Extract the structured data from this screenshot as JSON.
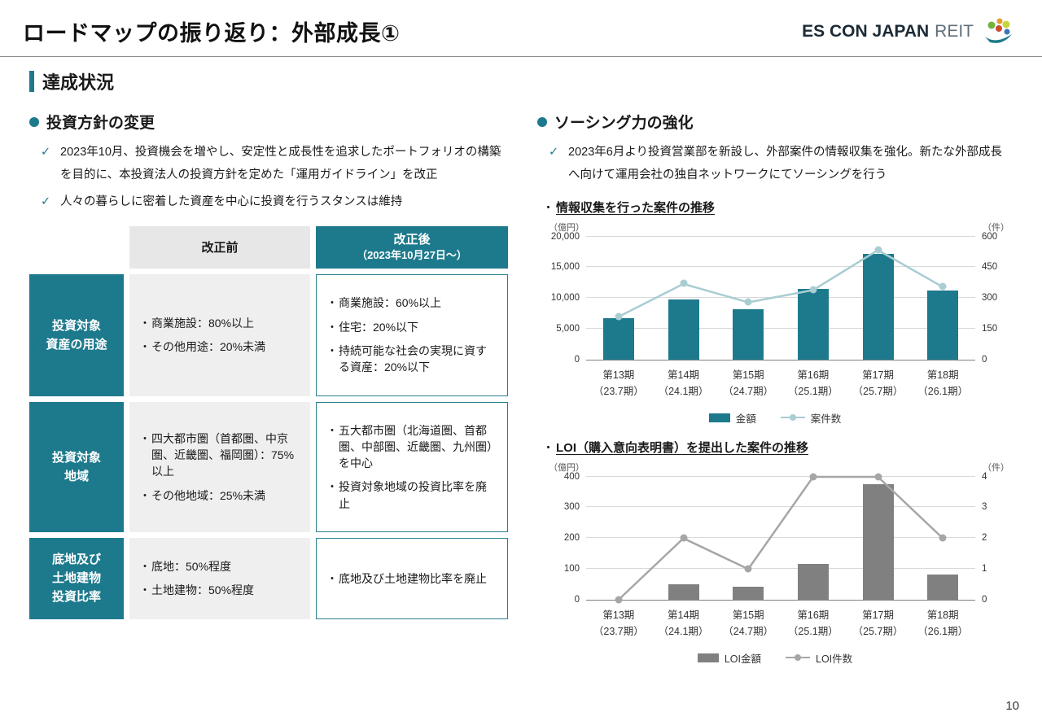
{
  "page": {
    "title": "ロードマップの振り返り：外部成長①",
    "page_number": "10",
    "logo": {
      "text_main": "ES CON JAPAN",
      "text_sub": "REIT"
    }
  },
  "section": {
    "heading": "達成状況"
  },
  "left": {
    "heading": "投資方針の変更",
    "bullets": [
      "2023年10月、投資機会を増やし、安定性と成長性を追求したポートフォリオの構築を目的に、本投資法人の投資方針を定めた「運用ガイドライン」を改正",
      "人々の暮らしに密着した資産を中心に投資を行うスタンスは維持"
    ],
    "table": {
      "col_before": "改正前",
      "col_after_line1": "改正後",
      "col_after_line2": "（2023年10月27日～）",
      "rows": [
        {
          "header": "投資対象\n資産の用途",
          "before": [
            "商業施設：80%以上",
            "その他用途：20%未満"
          ],
          "after": [
            "商業施設：60%以上",
            "住宅：20%以下",
            "持続可能な社会の実現に資する資産：20%以下"
          ]
        },
        {
          "header": "投資対象\n地域",
          "before": [
            "四大都市圏（首都圏、中京圏、近畿圏、福岡圏）：75%以上",
            "その他地域：25%未満"
          ],
          "after": [
            "五大都市圏（北海道圏、首都圏、中部圏、近畿圏、九州圏）を中心",
            "投資対象地域の投資比率を廃止"
          ]
        },
        {
          "header": "底地及び\n土地建物\n投資比率",
          "before": [
            "底地：50%程度",
            "土地建物：50%程度"
          ],
          "after": [
            "底地及び土地建物比率を廃止"
          ]
        }
      ]
    }
  },
  "right": {
    "heading": "ソーシング力の強化",
    "bullets": [
      "2023年6月より投資営業部を新設し、外部案件の情報収集を強化。新たな外部成長へ向けて運用会社の独自ネットワークにてソーシングを行う"
    ],
    "chart_titles": [
      "情報収集を行った案件の推移",
      "LOI（購入意向表明書）を提出した案件の推移"
    ]
  },
  "chart_data": [
    {
      "type": "bar",
      "title": "情報収集を行った案件の推移",
      "categories": [
        "第13期",
        "第14期",
        "第15期",
        "第16期",
        "第17期",
        "第18期"
      ],
      "category_sub": [
        "（23.7期）",
        "（24.1期）",
        "（24.7期）",
        "（25.1期）",
        "（25.7期）",
        "（26.1期）"
      ],
      "left_axis": {
        "label": "（億円）",
        "max": 20000,
        "ticks": [
          0,
          5000,
          10000,
          15000,
          20000
        ]
      },
      "right_axis": {
        "label": "（件）",
        "max": 600,
        "ticks": [
          0,
          150,
          300,
          450,
          600
        ]
      },
      "series": [
        {
          "name": "金額",
          "type": "bar",
          "axis": "left",
          "color": "#1d7a8c",
          "values": [
            6700,
            9800,
            8100,
            11400,
            17200,
            11200
          ]
        },
        {
          "name": "案件数",
          "type": "line",
          "axis": "right",
          "color": "#a9cdd2",
          "values": [
            210,
            370,
            280,
            340,
            535,
            355
          ]
        }
      ],
      "grid": true,
      "legend_position": "bottom"
    },
    {
      "type": "bar",
      "title": "LOI（購入意向表明書）を提出した案件の推移",
      "categories": [
        "第13期",
        "第14期",
        "第15期",
        "第16期",
        "第17期",
        "第18期"
      ],
      "category_sub": [
        "（23.7期）",
        "（24.1期）",
        "（24.7期）",
        "（25.1期）",
        "（25.7期）",
        "（26.1期）"
      ],
      "left_axis": {
        "label": "（億円）",
        "max": 400,
        "ticks": [
          0,
          100,
          200,
          300,
          400
        ]
      },
      "right_axis": {
        "label": "（件）",
        "max": 4,
        "ticks": [
          0,
          1,
          2,
          3,
          4
        ]
      },
      "series": [
        {
          "name": "LOI金額",
          "type": "bar",
          "axis": "left",
          "color": "#808080",
          "values": [
            0,
            50,
            40,
            115,
            375,
            80
          ]
        },
        {
          "name": "LOI件数",
          "type": "line",
          "axis": "right",
          "color": "#a6a6a6",
          "values": [
            0,
            2,
            1,
            4,
            4,
            2
          ]
        }
      ],
      "grid": true,
      "legend_position": "bottom"
    }
  ]
}
